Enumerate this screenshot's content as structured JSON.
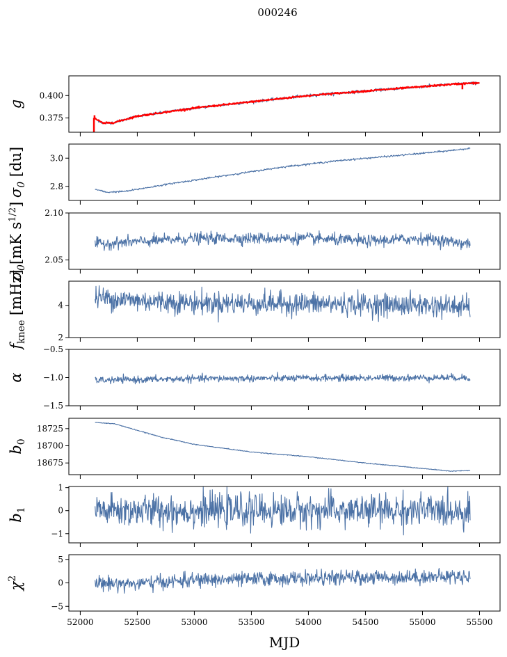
{
  "figure": {
    "title": "000246",
    "xlabel": "MJD"
  },
  "x_axis": {
    "range": [
      51900,
      55680
    ],
    "ticks": [
      "52000",
      "52500",
      "53000",
      "53500",
      "54000",
      "54500",
      "55000",
      "55500"
    ],
    "tick_values": [
      52000,
      52500,
      53000,
      53500,
      54000,
      54500,
      55000,
      55500
    ]
  },
  "colors": {
    "series": "#4c72a6",
    "highlight": "#ff0000"
  },
  "chart_data": [
    {
      "type": "line",
      "id": "g",
      "ylabel": "g",
      "ylim": [
        0.359,
        0.422
      ],
      "yticks": [
        0.375,
        0.4
      ],
      "yticklabels": [
        "0.375",
        "0.400"
      ],
      "x_range": [
        52120,
        55500
      ],
      "noise": 0.0008,
      "series": [
        {
          "values": [
            [
              52120,
              0.375
            ],
            [
              52200,
              0.369
            ],
            [
              52300,
              0.37
            ],
            [
              52500,
              0.377
            ],
            [
              53000,
              0.386
            ],
            [
              53500,
              0.393
            ],
            [
              54000,
              0.4
            ],
            [
              54500,
              0.405
            ],
            [
              55000,
              0.41
            ],
            [
              55300,
              0.413
            ],
            [
              55480,
              0.414
            ]
          ]
        },
        {
          "color": "highlight",
          "values": [
            [
              52120,
              0.375
            ],
            [
              52200,
              0.369
            ],
            [
              52300,
              0.37
            ],
            [
              52500,
              0.377
            ],
            [
              53000,
              0.386
            ],
            [
              53500,
              0.393
            ],
            [
              54000,
              0.4
            ],
            [
              54500,
              0.405
            ],
            [
              55000,
              0.41
            ],
            [
              55300,
              0.413
            ],
            [
              55480,
              0.414
            ]
          ]
        }
      ],
      "spikes": [
        [
          52120,
          0.359
        ],
        [
          52125,
          0.378
        ],
        [
          55350,
          0.407
        ]
      ]
    },
    {
      "type": "line",
      "id": "sigma0_du",
      "ylabel": "σ0 [du]",
      "ylim": [
        2.7,
        3.1
      ],
      "yticks": [
        2.8,
        3.0
      ],
      "yticklabels": [
        "2.8",
        "3.0"
      ],
      "x_range": [
        52130,
        55420
      ],
      "noise": 0.003,
      "series": [
        {
          "values": [
            [
              52130,
              2.78
            ],
            [
              52230,
              2.758
            ],
            [
              52400,
              2.765
            ],
            [
              52800,
              2.82
            ],
            [
              53300,
              2.88
            ],
            [
              53800,
              2.94
            ],
            [
              54300,
              2.985
            ],
            [
              54800,
              3.02
            ],
            [
              55200,
              3.05
            ],
            [
              55420,
              3.07
            ]
          ]
        }
      ]
    },
    {
      "type": "line",
      "id": "sigma0_mK",
      "ylabel": "σ0[mK s1/2]",
      "ylim": [
        2.04,
        2.1
      ],
      "yticks": [
        2.05,
        2.1
      ],
      "yticklabels": [
        "2.05",
        "2.10"
      ],
      "x_range": [
        52130,
        55420
      ],
      "noise": 0.003,
      "series": [
        {
          "values": [
            [
              52130,
              2.067
            ],
            [
              52600,
              2.07
            ],
            [
              53000,
              2.073
            ],
            [
              53500,
              2.073
            ],
            [
              54000,
              2.073
            ],
            [
              54500,
              2.07
            ],
            [
              55000,
              2.073
            ],
            [
              55420,
              2.067
            ]
          ]
        }
      ]
    },
    {
      "type": "line",
      "id": "fknee",
      "ylabel": "fknee [mHz]",
      "ylim": [
        2.0,
        5.5
      ],
      "yticks": [
        2,
        4
      ],
      "yticklabels": [
        "2",
        "4"
      ],
      "x_range": [
        52130,
        55420
      ],
      "noise": 0.35,
      "series": [
        {
          "values": [
            [
              52130,
              4.5
            ],
            [
              52500,
              4.3
            ],
            [
              53000,
              4.15
            ],
            [
              54000,
              4.1
            ],
            [
              55000,
              4.0
            ],
            [
              55420,
              3.9
            ]
          ]
        }
      ]
    },
    {
      "type": "line",
      "id": "alpha",
      "ylabel": "α",
      "ylim": [
        -1.5,
        -0.5
      ],
      "yticks": [
        -1.5,
        -1.0,
        -0.5
      ],
      "yticklabels": [
        "−1.5",
        "−1.0",
        "−0.5"
      ],
      "x_range": [
        52130,
        55420
      ],
      "noise": 0.03,
      "series": [
        {
          "values": [
            [
              52130,
              -1.05
            ],
            [
              53000,
              -1.02
            ],
            [
              54000,
              -1.01
            ],
            [
              55420,
              -1.0
            ]
          ]
        }
      ]
    },
    {
      "type": "line",
      "id": "b0",
      "ylabel": "b0",
      "ylim": [
        18658,
        18740
      ],
      "yticks": [
        18675,
        18700,
        18725
      ],
      "yticklabels": [
        "18675",
        "18700",
        "18725"
      ],
      "x_range": [
        52130,
        55420
      ],
      "noise": 0.3,
      "series": [
        {
          "values": [
            [
              52130,
              18734
            ],
            [
              52300,
              18732
            ],
            [
              52700,
              18713
            ],
            [
              53000,
              18702
            ],
            [
              53500,
              18691
            ],
            [
              54000,
              18684
            ],
            [
              54500,
              18675
            ],
            [
              55000,
              18667
            ],
            [
              55250,
              18663
            ],
            [
              55420,
              18664
            ]
          ]
        }
      ]
    },
    {
      "type": "line",
      "id": "b1",
      "ylabel": "b1",
      "ylim": [
        -1.4,
        1.05
      ],
      "yticks": [
        -1,
        0,
        1
      ],
      "yticklabels": [
        "−1",
        "0",
        "1"
      ],
      "x_range": [
        52130,
        55420
      ],
      "noise": 0.35,
      "series": [
        {
          "values": [
            [
              52130,
              0
            ],
            [
              55420,
              0
            ]
          ]
        }
      ]
    },
    {
      "type": "line",
      "id": "chi2",
      "ylabel": "χ2",
      "ylim": [
        -6,
        6
      ],
      "yticks": [
        -5,
        0,
        5
      ],
      "yticklabels": [
        "−5",
        "0",
        "5"
      ],
      "x_range": [
        52130,
        55420
      ],
      "noise": 0.75,
      "series": [
        {
          "values": [
            [
              52130,
              0
            ],
            [
              52500,
              -0.2
            ],
            [
              53000,
              0.6
            ],
            [
              54000,
              1.0
            ],
            [
              55420,
              1.4
            ]
          ]
        }
      ]
    }
  ]
}
